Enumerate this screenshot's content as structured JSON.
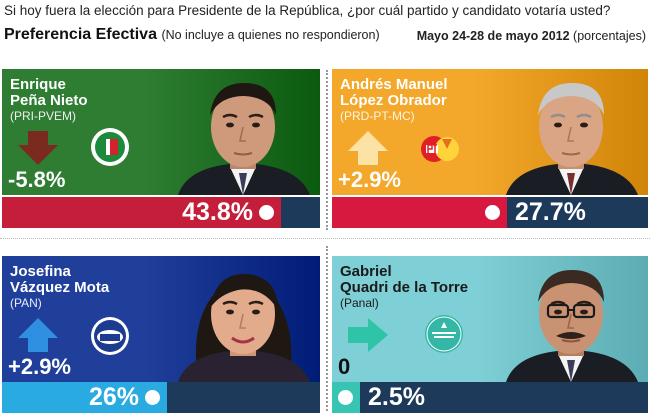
{
  "header": {
    "question": "Si hoy fuera la elección para Presidente de la República, ¿por cuál partido y candidato votaría usted?",
    "section_title": "Preferencia Efectiva",
    "section_note": "(No incluye a quienes no respondieron)",
    "date_bold": "Mayo 24-28 de mayo 2012",
    "date_note": "(porcentajes)"
  },
  "chart_data": {
    "type": "bar",
    "title": "Preferencia Efectiva",
    "categories": [
      "Enrique Peña Nieto",
      "Andrés Manuel López Obrador",
      "Josefina Vázquez Mota",
      "Gabriel Quadri de la Torre"
    ],
    "values": [
      43.8,
      27.7,
      26,
      2.5
    ],
    "candidates": [
      {
        "name_line1": "Enrique",
        "name_line2": "Peña Nieto",
        "party": "(PRI-PVEM)",
        "change": "-5.8%",
        "trend": "down",
        "value": 43.8,
        "value_label": "43.8%",
        "color": "#c41e3a",
        "bg_color": "#2e7d32",
        "name_color": "#ffffff",
        "party_color": "#f0f0f0",
        "arrow_color": "#7a2a1e",
        "logo_icon": "pri-logo-icon"
      },
      {
        "name_line1": "Andrés Manuel",
        "name_line2": "López Obrador",
        "party": "(PRD-PT-MC)",
        "change": "+2.9%",
        "trend": "up",
        "value": 27.7,
        "value_label": "27.7%",
        "color": "#d7193f",
        "bg_color": "#f3a72b",
        "name_color": "#ffffff",
        "party_color": "#fff5df",
        "arrow_color": "#fde2a6",
        "logo_icon": "prd-pt-logo-icon"
      },
      {
        "name_line1": "Josefina",
        "name_line2": "Vázquez Mota",
        "party": "(PAN)",
        "change": "+2.9%",
        "trend": "up",
        "value": 26,
        "value_label": "26%",
        "color": "#29abe2",
        "bg_color": "#1f3f9a",
        "name_color": "#ffffff",
        "party_color": "#e6ecff",
        "arrow_color": "#2f8fe0",
        "logo_icon": "pan-logo-icon"
      },
      {
        "name_line1": "Gabriel",
        "name_line2": "Quadri de la Torre",
        "party": "(Panal)",
        "change": "0",
        "trend": "flat",
        "value": 2.5,
        "value_label": "2.5%",
        "color": "#38c4b2",
        "bg_color": "#7fd0d6",
        "name_color": "#1a1a1a",
        "party_color": "#1a1a1a",
        "arrow_color": "#2fc4a8",
        "logo_icon": "nueva-alianza-logo-icon"
      }
    ]
  }
}
